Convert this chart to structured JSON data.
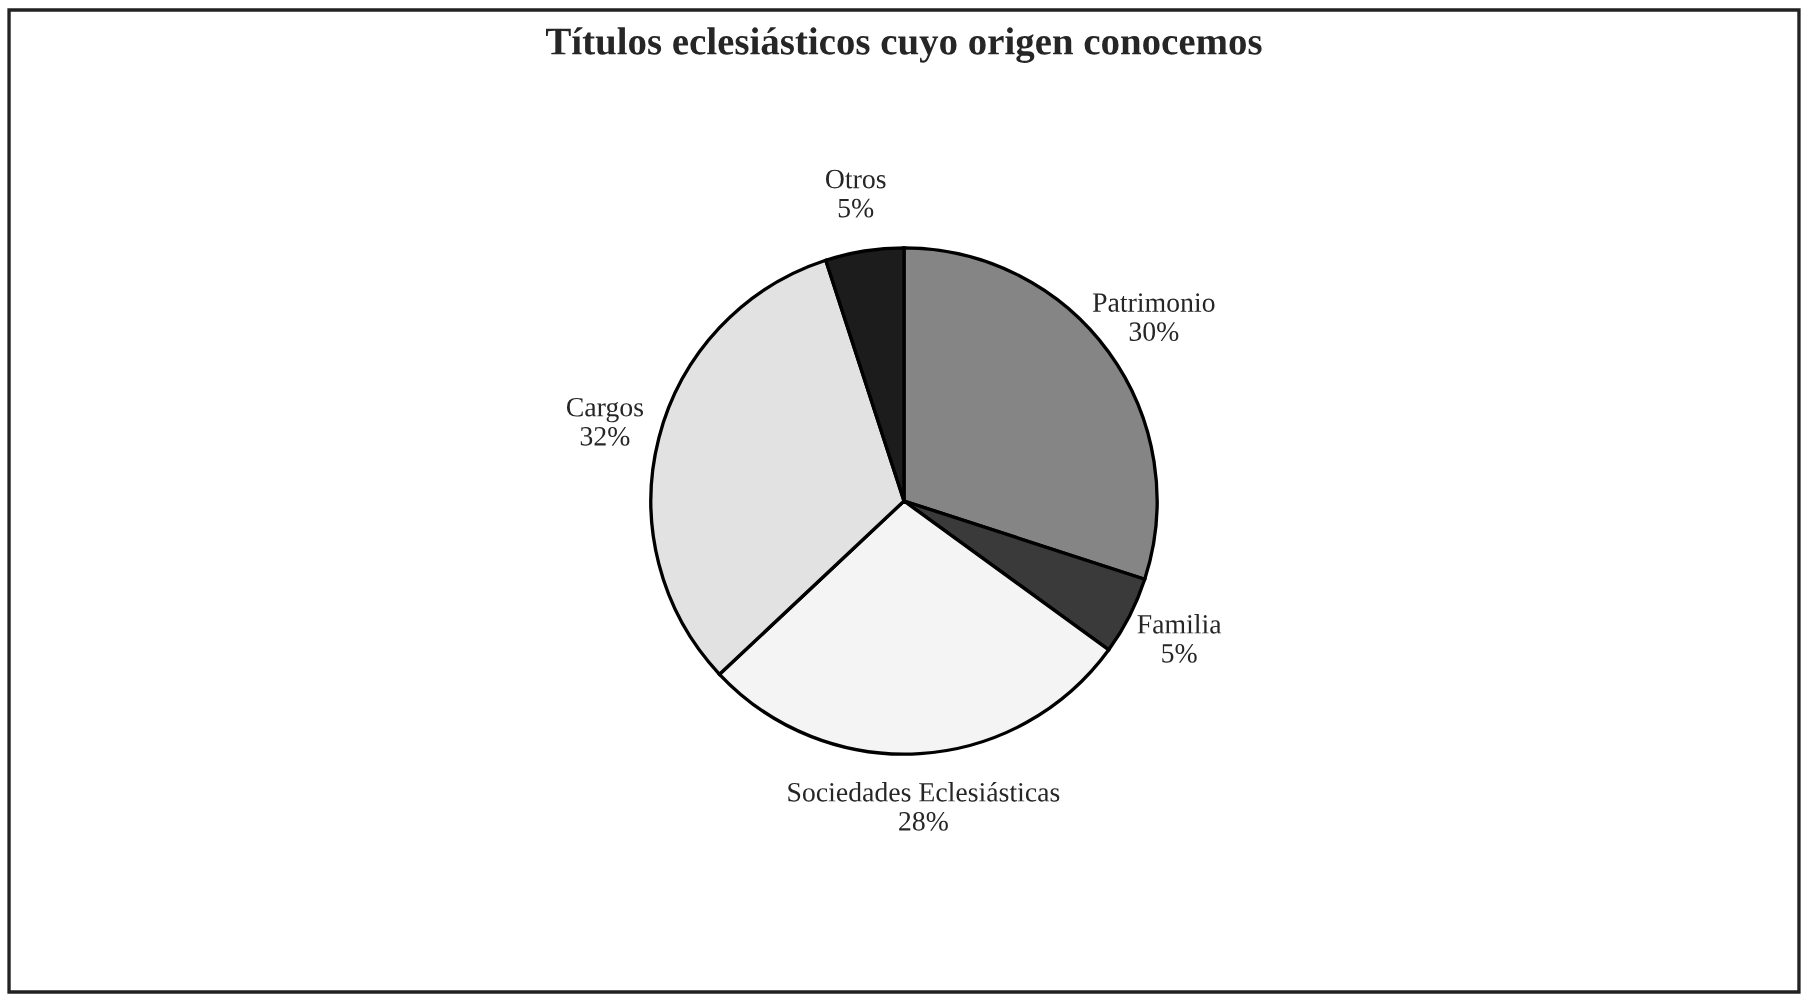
{
  "chart_data": {
    "type": "pie",
    "title": "Títulos eclesiásticos cuyo origen conocemos",
    "categories": [
      "Patrimonio",
      "Familia",
      "Sociedades Eclesiásticas",
      "Cargos",
      "Otros"
    ],
    "values": [
      30,
      5,
      28,
      32,
      5
    ],
    "value_labels": [
      "30%",
      "5%",
      "28%",
      "32%",
      "5%"
    ],
    "colors": [
      "#858585",
      "#3a3a3a",
      "#f4f4f4",
      "#e2e2e2",
      "#1c1c1c"
    ]
  }
}
